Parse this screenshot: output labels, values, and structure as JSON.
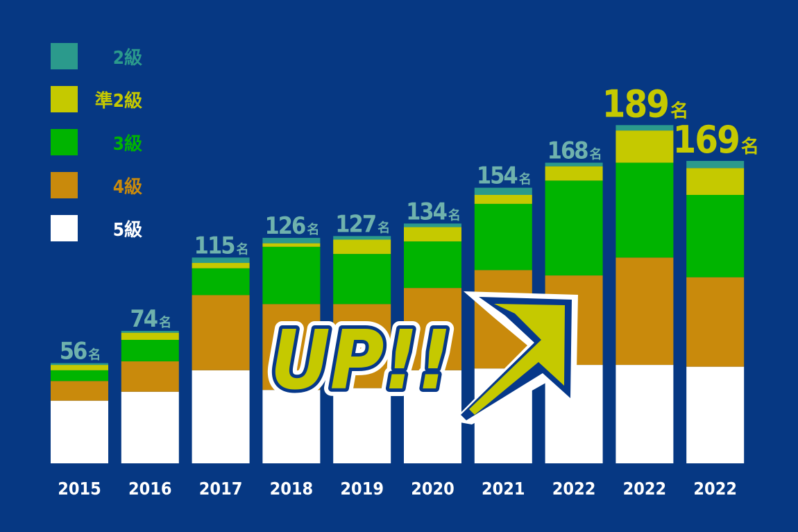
{
  "chart_data": {
    "type": "stacked_bar",
    "categories": [
      "2015",
      "2016",
      "2017",
      "2018",
      "2019",
      "2020",
      "2021",
      "2022",
      "2022",
      "2022"
    ],
    "series": [
      {
        "name": "5級",
        "color": "#ffffff",
        "values": [
          35,
          40,
          52,
          41,
          42,
          52,
          53,
          55,
          55,
          54
        ]
      },
      {
        "name": "4級",
        "color": "#c98a0c",
        "values": [
          11,
          17,
          42,
          48,
          47,
          46,
          55,
          50,
          60,
          50
        ]
      },
      {
        "name": "3級",
        "color": "#00b400",
        "values": [
          6,
          12,
          15,
          32,
          28,
          26,
          37,
          53,
          53,
          46
        ]
      },
      {
        "name": "準2級",
        "color": "#c5c900",
        "values": [
          3,
          4,
          3,
          2,
          8,
          8,
          5,
          8,
          18,
          15
        ]
      },
      {
        "name": "2級",
        "color": "#2b9a8c",
        "values": [
          1,
          1,
          3,
          3,
          2,
          2,
          4,
          2,
          3,
          4
        ]
      }
    ],
    "totals": {
      "values": [
        56,
        74,
        115,
        126,
        127,
        134,
        154,
        168,
        189,
        169
      ],
      "unit": "名",
      "colors": [
        "#6fb2ad",
        "#6fb2ad",
        "#6fb2ad",
        "#6fb2ad",
        "#6fb2ad",
        "#6fb2ad",
        "#6fb2ad",
        "#6fb2ad",
        "#c5c900",
        "#c5c900"
      ],
      "emphasis": [
        false,
        false,
        false,
        false,
        false,
        false,
        false,
        false,
        true,
        true
      ]
    },
    "ylim": [
      0,
      200
    ],
    "annotation": "UP!!"
  }
}
